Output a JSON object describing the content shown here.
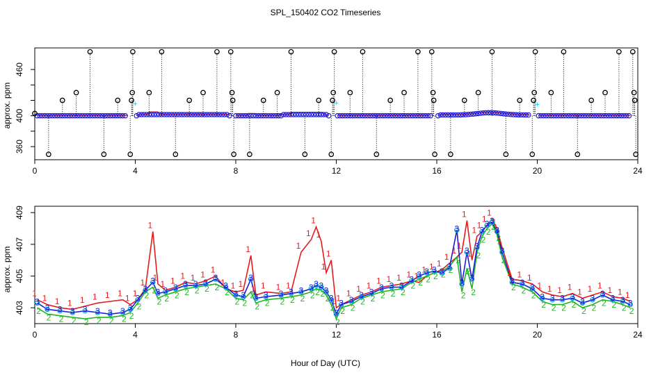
{
  "title": "SPL_150402  CO2 Timeseries",
  "xlabel": "Hour of Day (UTC)",
  "colors": {
    "s1": "#e41a1c",
    "s2": "#1fb51f",
    "s3": "#1a1adb",
    "marker": "#00c8ff",
    "axis": "#000000"
  },
  "chart_data": [
    {
      "type": "scatter",
      "ylabel": "approx. ppm",
      "xlim": [
        0,
        24
      ],
      "ylim": [
        343,
        488
      ],
      "xticks": [
        0,
        4,
        8,
        12,
        16,
        20,
        24
      ],
      "yticks": [
        360,
        380,
        400,
        420,
        440,
        460
      ],
      "ytick_labels_shown": [
        360,
        380,
        400,
        420,
        440,
        460
      ],
      "ytick_labels": [
        "360",
        "",
        "400",
        "",
        "",
        "460"
      ],
      "calibration_spikes": [
        {
          "x": 0.0,
          "y": 403
        },
        {
          "x": 0.55,
          "y": 350
        },
        {
          "x": 1.1,
          "y": 420
        },
        {
          "x": 1.65,
          "y": 430
        },
        {
          "x": 2.2,
          "y": 483
        },
        {
          "x": 2.75,
          "y": 350
        },
        {
          "x": 3.3,
          "y": 420
        },
        {
          "x": 3.8,
          "y": 350
        },
        {
          "x": 3.85,
          "y": 420
        },
        {
          "x": 3.88,
          "y": 430
        },
        {
          "x": 3.9,
          "y": 483
        },
        {
          "x": 4.55,
          "y": 430
        },
        {
          "x": 5.05,
          "y": 483
        },
        {
          "x": 5.6,
          "y": 350
        },
        {
          "x": 6.15,
          "y": 420
        },
        {
          "x": 6.7,
          "y": 430
        },
        {
          "x": 7.25,
          "y": 483
        },
        {
          "x": 7.8,
          "y": 483
        },
        {
          "x": 7.85,
          "y": 430
        },
        {
          "x": 7.88,
          "y": 420
        },
        {
          "x": 7.92,
          "y": 350
        },
        {
          "x": 8.55,
          "y": 350
        },
        {
          "x": 9.1,
          "y": 420
        },
        {
          "x": 9.65,
          "y": 430
        },
        {
          "x": 10.2,
          "y": 483
        },
        {
          "x": 10.75,
          "y": 350
        },
        {
          "x": 11.3,
          "y": 420
        },
        {
          "x": 11.8,
          "y": 350
        },
        {
          "x": 11.85,
          "y": 420
        },
        {
          "x": 11.88,
          "y": 430
        },
        {
          "x": 11.92,
          "y": 483
        },
        {
          "x": 12.55,
          "y": 430
        },
        {
          "x": 13.05,
          "y": 483
        },
        {
          "x": 13.6,
          "y": 350
        },
        {
          "x": 14.15,
          "y": 420
        },
        {
          "x": 14.7,
          "y": 430
        },
        {
          "x": 15.25,
          "y": 483
        },
        {
          "x": 15.8,
          "y": 483
        },
        {
          "x": 15.85,
          "y": 430
        },
        {
          "x": 15.88,
          "y": 420
        },
        {
          "x": 15.92,
          "y": 350
        },
        {
          "x": 16.55,
          "y": 350
        },
        {
          "x": 17.1,
          "y": 420
        },
        {
          "x": 17.65,
          "y": 430
        },
        {
          "x": 18.2,
          "y": 483
        },
        {
          "x": 18.75,
          "y": 350
        },
        {
          "x": 19.3,
          "y": 420
        },
        {
          "x": 19.8,
          "y": 350
        },
        {
          "x": 19.85,
          "y": 420
        },
        {
          "x": 19.88,
          "y": 430
        },
        {
          "x": 19.92,
          "y": 483
        },
        {
          "x": 20.55,
          "y": 430
        },
        {
          "x": 21.05,
          "y": 483
        },
        {
          "x": 21.6,
          "y": 350
        },
        {
          "x": 22.15,
          "y": 420
        },
        {
          "x": 22.7,
          "y": 430
        },
        {
          "x": 23.25,
          "y": 483
        },
        {
          "x": 23.8,
          "y": 483
        },
        {
          "x": 23.85,
          "y": 430
        },
        {
          "x": 23.88,
          "y": 420
        },
        {
          "x": 23.92,
          "y": 350
        }
      ],
      "cyan_points": [
        {
          "x": 4.0,
          "y": 416
        },
        {
          "x": 12.0,
          "y": 417
        },
        {
          "x": 20.0,
          "y": 415
        }
      ]
    },
    {
      "type": "line",
      "ylabel": "approx. ppm",
      "xlim": [
        0,
        24
      ],
      "ylim": [
        402,
        409.4
      ],
      "xticks": [
        0,
        4,
        8,
        12,
        16,
        20,
        24
      ],
      "yticks": [
        403,
        405,
        407,
        409
      ],
      "x": [
        0.1,
        0.5,
        1.0,
        1.5,
        2.0,
        2.5,
        3.0,
        3.5,
        3.8,
        4.1,
        4.4,
        4.7,
        4.9,
        5.2,
        5.6,
        6.0,
        6.4,
        6.8,
        7.2,
        7.6,
        8.0,
        8.3,
        8.6,
        8.8,
        9.2,
        9.8,
        10.2,
        10.6,
        11.0,
        11.2,
        11.4,
        11.6,
        11.8,
        12.0,
        12.2,
        12.6,
        13.0,
        13.4,
        13.8,
        14.2,
        14.6,
        15.0,
        15.3,
        15.6,
        15.9,
        16.2,
        16.5,
        16.8,
        17.0,
        17.2,
        17.4,
        17.6,
        17.8,
        18.0,
        18.2,
        18.4,
        18.6,
        19.0,
        19.4,
        19.8,
        20.2,
        20.6,
        21.0,
        21.4,
        21.8,
        22.2,
        22.6,
        23.0,
        23.4,
        23.7
      ],
      "series": [
        {
          "name": "1",
          "values": [
            403.5,
            403.2,
            403.0,
            402.9,
            403.1,
            403.3,
            403.4,
            403.5,
            403.2,
            403.5,
            404.2,
            407.8,
            404.5,
            404.1,
            404.3,
            404.6,
            404.5,
            404.7,
            405.0,
            404.2,
            404.0,
            404.1,
            406.3,
            403.8,
            404.0,
            403.9,
            404.0,
            406.5,
            407.3,
            408.1,
            407.2,
            405.2,
            406.0,
            403.0,
            403.2,
            403.5,
            403.8,
            404.0,
            404.3,
            404.4,
            404.5,
            404.7,
            404.6,
            405.0,
            405.2,
            405.4,
            405.8,
            406.2,
            406.5,
            408.5,
            406.0,
            407.5,
            407.8,
            408.2,
            408.6,
            408.0,
            406.8,
            404.8,
            404.7,
            404.5,
            404.0,
            403.8,
            403.7,
            403.9,
            403.6,
            403.8,
            404.0,
            403.7,
            403.6,
            403.4
          ]
        },
        {
          "name": "2",
          "values": [
            403.0,
            402.6,
            402.5,
            402.4,
            402.3,
            402.4,
            402.4,
            402.5,
            402.7,
            403.3,
            404.0,
            404.3,
            403.6,
            403.8,
            404.0,
            404.2,
            404.3,
            404.4,
            404.5,
            404.2,
            403.6,
            403.5,
            404.0,
            403.3,
            403.5,
            403.6,
            403.7,
            403.8,
            404.0,
            404.2,
            404.1,
            403.8,
            403.2,
            402.3,
            403.0,
            403.2,
            403.6,
            403.8,
            404.0,
            404.1,
            404.2,
            404.6,
            404.8,
            405.0,
            405.2,
            405.3,
            405.6,
            406.2,
            404.0,
            405.5,
            404.2,
            406.5,
            407.5,
            408.0,
            408.3,
            407.6,
            406.2,
            404.5,
            404.3,
            404.0,
            403.4,
            403.2,
            403.2,
            403.4,
            403.0,
            403.2,
            403.5,
            403.4,
            403.2,
            403.0
          ]
        },
        {
          "name": "3",
          "values": [
            403.3,
            402.9,
            402.8,
            402.7,
            402.8,
            402.7,
            402.6,
            402.7,
            402.9,
            403.5,
            404.1,
            404.6,
            403.9,
            404.0,
            404.2,
            404.4,
            404.4,
            404.5,
            404.8,
            404.3,
            403.8,
            403.7,
            404.8,
            403.6,
            403.7,
            403.8,
            403.9,
            404.0,
            404.2,
            404.4,
            404.3,
            404.0,
            403.5,
            402.6,
            403.2,
            403.4,
            403.7,
            403.9,
            404.2,
            404.3,
            404.3,
            404.7,
            405.0,
            405.2,
            405.3,
            405.2,
            405.5,
            407.9,
            404.5,
            406.5,
            404.8,
            406.8,
            407.8,
            408.2,
            408.4,
            407.8,
            406.5,
            404.6,
            404.5,
            404.2,
            403.6,
            403.5,
            403.5,
            403.6,
            403.3,
            403.5,
            403.8,
            403.5,
            403.4,
            403.2
          ]
        }
      ]
    }
  ]
}
